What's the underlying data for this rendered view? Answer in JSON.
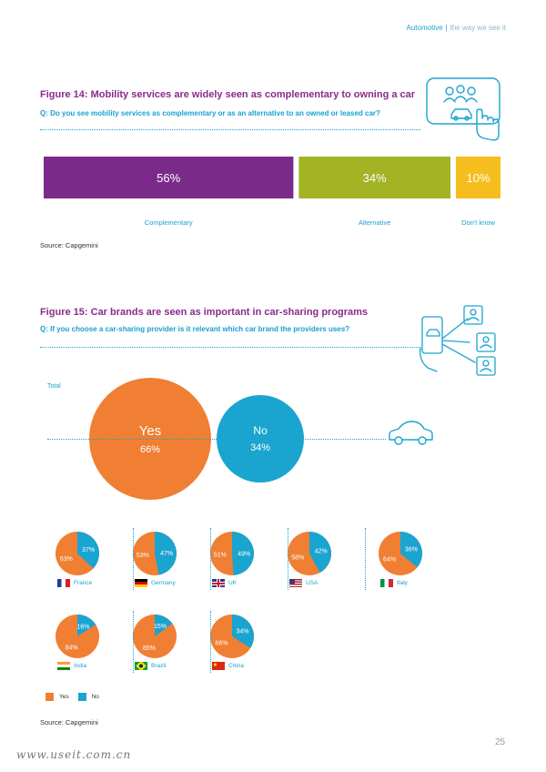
{
  "header": {
    "section": "Automotive",
    "separator": "|",
    "tagline": "the way we see it"
  },
  "fig14": {
    "title": "Figure 14: Mobility services are widely seen as complementary to owning a car",
    "question": "Q: Do you see mobility services as complementary or as an alternative to an owned or leased car?",
    "source": "Source: Capgemini",
    "icon": "touchscreen-car-icon"
  },
  "fig15": {
    "title": "Figure 15: Car brands are seen as important in car-sharing programs",
    "question": "Q: If you choose a car-sharing provider is it relevant which car brand the providers uses?",
    "source": "Source: Capgemini",
    "total_label": "Total",
    "icon": "car-sharing-phone-icon"
  },
  "colors": {
    "purple": "#7a2b8a",
    "green": "#a2b323",
    "yellow": "#f5be1e",
    "orange": "#f07f33",
    "blue": "#1aa4d0"
  },
  "chart_data": [
    {
      "type": "bar",
      "stacked": true,
      "categories": [
        "Complementary",
        "Alternative",
        "Don't know"
      ],
      "values": [
        56,
        34,
        10
      ],
      "value_labels": [
        "56%",
        "34%",
        "10%"
      ],
      "colors": [
        "#7a2b8a",
        "#a2b323",
        "#f5be1e"
      ]
    },
    {
      "type": "pie",
      "title_label": "Total",
      "categories": [
        "Yes",
        "No"
      ],
      "values": [
        66,
        34
      ],
      "value_labels": [
        "66%",
        "34%"
      ],
      "colors": [
        "#f07f33",
        "#1aa4d0"
      ],
      "countries": [
        {
          "name": "France",
          "yes": 63,
          "no": 37,
          "yes_label": "63%",
          "no_label": "37%"
        },
        {
          "name": "Germany",
          "yes": 53,
          "no": 47,
          "yes_label": "53%",
          "no_label": "47%"
        },
        {
          "name": "UK",
          "yes": 51,
          "no": 49,
          "yes_label": "51%",
          "no_label": "49%"
        },
        {
          "name": "USA",
          "yes": 58,
          "no": 42,
          "yes_label": "58%",
          "no_label": "42%"
        },
        {
          "name": "Italy",
          "yes": 64,
          "no": 36,
          "yes_label": "64%",
          "no_label": "36%"
        },
        {
          "name": "India",
          "yes": 84,
          "no": 16,
          "yes_label": "84%",
          "no_label": "16%"
        },
        {
          "name": "Brazil",
          "yes": 85,
          "no": 15,
          "yes_label": "85%",
          "no_label": "15%"
        },
        {
          "name": "China",
          "yes": 66,
          "no": 34,
          "yes_label": "66%",
          "no_label": "34%"
        }
      ],
      "legend": [
        "Yes",
        "No"
      ]
    }
  ],
  "page_number": "25",
  "watermark": "www.useit.com.cn"
}
